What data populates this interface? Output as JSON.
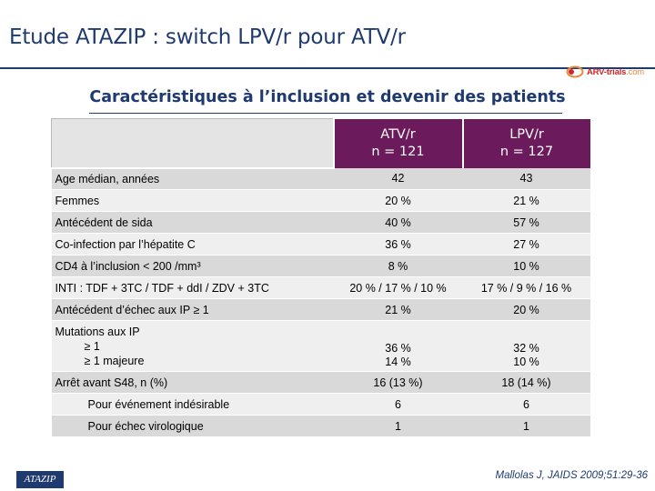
{
  "header": {
    "title": "Etude ATAZIP : switch LPV/r pour ATV/r",
    "logo_text": "ARV-trials",
    "logo_domain": ".com"
  },
  "subtitle": "Caractéristiques à l’inclusion et devenir des patients",
  "table": {
    "columns": [
      {
        "name": "ATV/r",
        "n": "n = 121"
      },
      {
        "name": "LPV/r",
        "n": "n = 127"
      }
    ],
    "rows": [
      {
        "label": "Age médian, années",
        "atv": "42",
        "lpv": "43"
      },
      {
        "label": "Femmes",
        "atv": "20 %",
        "lpv": "21 %"
      },
      {
        "label": "Antécédent de sida",
        "atv": "40 %",
        "lpv": "57 %"
      },
      {
        "label": "Co-infection par l’hépatite C",
        "atv": "36 %",
        "lpv": "27 %"
      },
      {
        "label": "CD4 à l’inclusion < 200 /mm³",
        "atv": "8 %",
        "lpv": "10 %"
      },
      {
        "label": "INTI : TDF + 3TC / TDF + ddI / ZDV + 3TC",
        "atv": "20 % / 17 % / 10 %",
        "lpv": "17 % / 9 % / 16 %"
      },
      {
        "label": "Antécédent d’échec aux IP ≥ 1",
        "atv": "21 %",
        "lpv": "20 %"
      },
      {
        "label": "Mutations aux IP",
        "sub1": "≥ 1",
        "sub2": "≥ 1 majeure",
        "atv1": "36 %",
        "atv2": "14 %",
        "lpv1": "32 %",
        "lpv2": "10 %"
      },
      {
        "label": "Arrêt avant S48, n (%)",
        "atv": "16 (13 %)",
        "lpv": "18 (14 %)"
      },
      {
        "label": "Pour événement indésirable",
        "atv": "6",
        "lpv": "6"
      },
      {
        "label": "Pour échec virologique",
        "atv": "1",
        "lpv": "1"
      }
    ]
  },
  "footer": {
    "tag": "ATAZIP",
    "citation": "Mallolas J, JAIDS 2009;51:29-36"
  },
  "colors": {
    "title_blue": "#1f3a6e",
    "header_purple": "#6b1a5b",
    "row_dark": "#d9d9d9",
    "row_light": "#efefef"
  }
}
